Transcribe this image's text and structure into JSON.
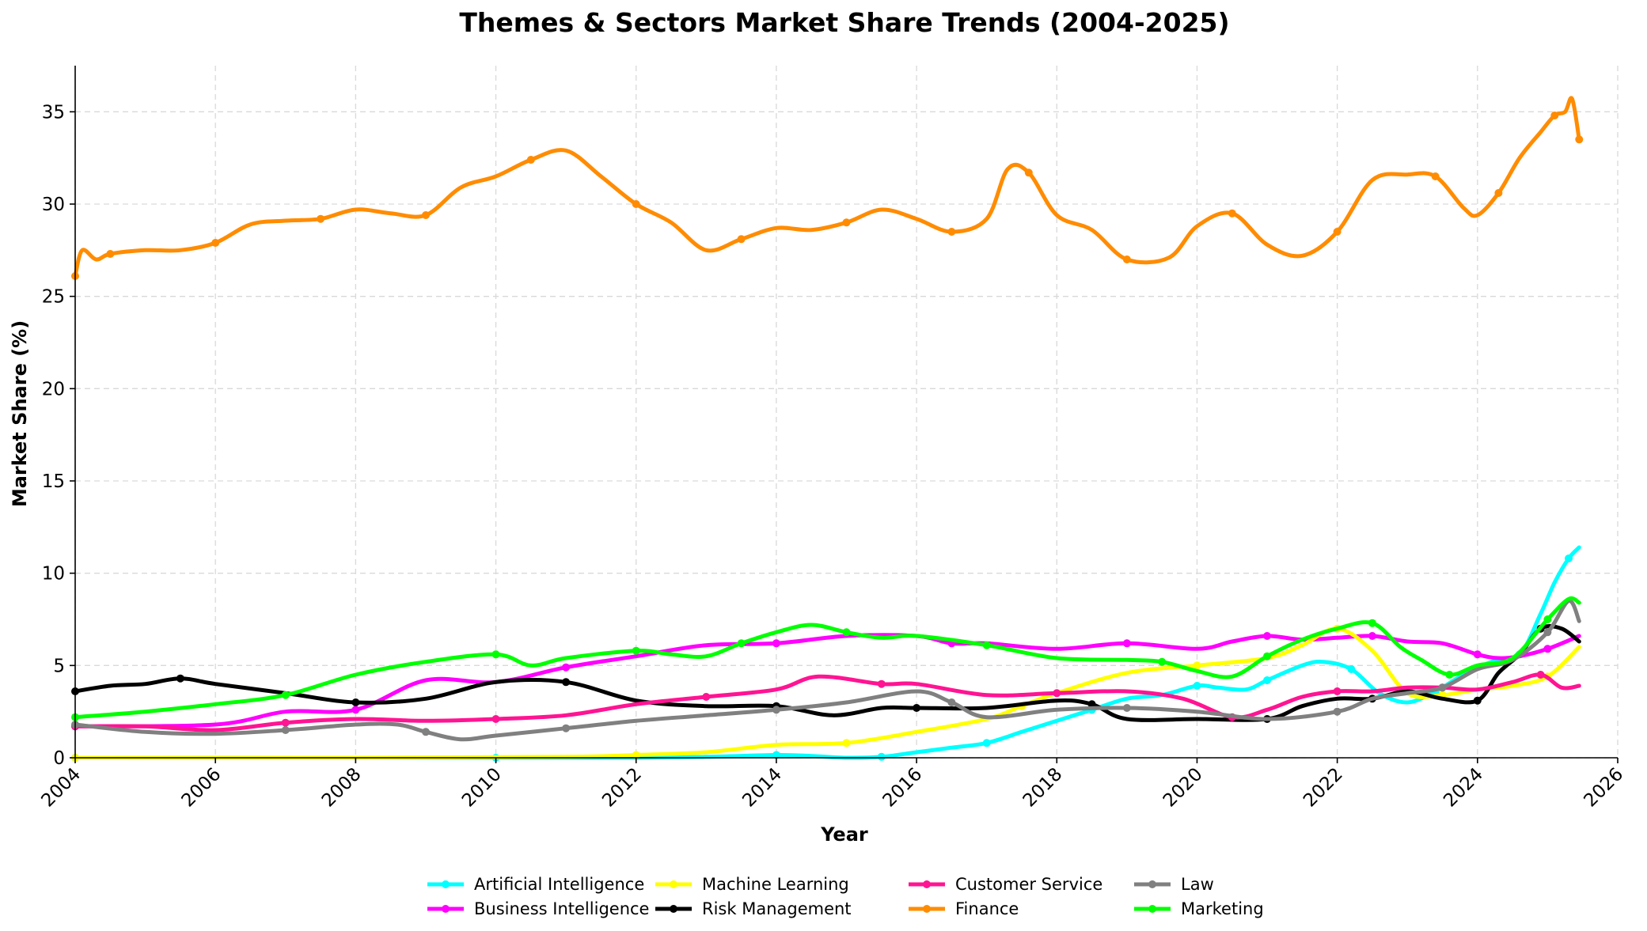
{
  "chart_data": {
    "type": "line",
    "title": "Themes & Sectors Market Share Trends (2004-2025)",
    "xlabel": "Year",
    "ylabel": "Market Share (%)",
    "xlim": [
      2004,
      2026
    ],
    "ylim": [
      0,
      37.5
    ],
    "xticks": [
      2004,
      2006,
      2008,
      2010,
      2012,
      2014,
      2016,
      2018,
      2020,
      2022,
      2024,
      2026
    ],
    "yticks": [
      0,
      5,
      10,
      15,
      20,
      25,
      30,
      35
    ],
    "grid": true,
    "legend_position": "bottom-center",
    "series": [
      {
        "name": "Artificial Intelligence",
        "color": "#00FFFF",
        "x": [
          2004.0,
          2006.0,
          2008.0,
          2010.0,
          2012.0,
          2013.0,
          2014.0,
          2014.5,
          2015.0,
          2015.5,
          2016.0,
          2016.5,
          2017.0,
          2017.5,
          2018.0,
          2018.5,
          2019.0,
          2019.5,
          2020.0,
          2020.3,
          2020.7,
          2021.0,
          2021.5,
          2021.8,
          2022.2,
          2022.6,
          2023.0,
          2023.4,
          2023.8,
          2024.2,
          2024.6,
          2024.9,
          2025.1,
          2025.3,
          2025.45
        ],
        "y": [
          0.0,
          0.0,
          0.0,
          0.0,
          0.0,
          0.05,
          0.15,
          0.1,
          0.0,
          0.05,
          0.3,
          0.55,
          0.8,
          1.4,
          2.0,
          2.6,
          3.2,
          3.4,
          3.9,
          3.8,
          3.7,
          4.2,
          5.0,
          5.2,
          4.8,
          3.5,
          3.0,
          3.6,
          4.5,
          5.2,
          5.6,
          7.8,
          9.5,
          10.8,
          11.4
        ]
      },
      {
        "name": "Business Intelligence",
        "color": "#FF00FF",
        "x": [
          2004.0,
          2006.0,
          2007.0,
          2008.0,
          2009.0,
          2010.0,
          2011.0,
          2012.0,
          2013.0,
          2014.0,
          2015.0,
          2016.0,
          2016.5,
          2017.0,
          2018.0,
          2019.0,
          2020.0,
          2020.5,
          2021.0,
          2021.5,
          2022.0,
          2022.5,
          2023.0,
          2023.5,
          2024.0,
          2024.3,
          2024.6,
          2025.0,
          2025.45
        ],
        "y": [
          1.7,
          1.8,
          2.5,
          2.6,
          4.2,
          4.1,
          4.9,
          5.5,
          6.1,
          6.2,
          6.6,
          6.6,
          6.2,
          6.2,
          5.9,
          6.2,
          5.9,
          6.3,
          6.6,
          6.4,
          6.5,
          6.6,
          6.3,
          6.2,
          5.6,
          5.4,
          5.5,
          5.9,
          6.6
        ]
      },
      {
        "name": "Machine Learning",
        "color": "#FFFF00",
        "x": [
          2004.0,
          2008.0,
          2011.0,
          2012.0,
          2013.0,
          2014.0,
          2015.0,
          2016.0,
          2017.0,
          2017.5,
          2018.0,
          2019.0,
          2020.0,
          2021.0,
          2021.5,
          2022.0,
          2022.5,
          2023.0,
          2023.5,
          2024.0,
          2024.5,
          2025.0,
          2025.45
        ],
        "y": [
          0.0,
          0.0,
          0.05,
          0.15,
          0.3,
          0.7,
          0.8,
          1.4,
          2.1,
          2.8,
          3.5,
          4.6,
          5.0,
          5.4,
          6.1,
          7.0,
          5.8,
          3.5,
          3.4,
          3.7,
          3.9,
          4.4,
          6.0
        ]
      },
      {
        "name": "Risk Management",
        "color": "#000000",
        "x": [
          2004.0,
          2004.5,
          2005.0,
          2005.5,
          2006.0,
          2007.0,
          2008.0,
          2009.0,
          2010.0,
          2011.0,
          2012.0,
          2013.0,
          2014.0,
          2014.8,
          2015.5,
          2016.0,
          2017.0,
          2018.0,
          2018.5,
          2019.0,
          2020.0,
          2021.0,
          2021.5,
          2022.0,
          2022.5,
          2023.0,
          2023.5,
          2024.0,
          2024.3,
          2024.6,
          2024.9,
          2025.2,
          2025.45
        ],
        "y": [
          3.6,
          3.9,
          4.0,
          4.3,
          4.0,
          3.5,
          3.0,
          3.2,
          4.1,
          4.1,
          3.1,
          2.8,
          2.8,
          2.3,
          2.7,
          2.7,
          2.7,
          3.1,
          2.9,
          2.1,
          2.1,
          2.1,
          2.8,
          3.2,
          3.2,
          3.6,
          3.2,
          3.1,
          4.6,
          5.6,
          7.0,
          7.0,
          6.3
        ]
      },
      {
        "name": "Customer Service",
        "color": "#FF1493",
        "x": [
          2004.0,
          2005.0,
          2006.0,
          2007.0,
          2008.0,
          2009.0,
          2010.0,
          2011.0,
          2012.0,
          2013.0,
          2014.0,
          2014.6,
          2015.5,
          2016.0,
          2017.0,
          2018.0,
          2019.0,
          2019.8,
          2020.5,
          2021.0,
          2021.5,
          2022.0,
          2022.5,
          2023.0,
          2023.5,
          2024.0,
          2024.5,
          2024.9,
          2025.2,
          2025.45
        ],
        "y": [
          1.7,
          1.7,
          1.5,
          1.9,
          2.1,
          2.0,
          2.1,
          2.3,
          2.9,
          3.3,
          3.7,
          4.4,
          4.0,
          4.0,
          3.4,
          3.5,
          3.6,
          3.2,
          2.2,
          2.6,
          3.3,
          3.6,
          3.6,
          3.8,
          3.8,
          3.7,
          4.1,
          4.5,
          3.8,
          3.9
        ]
      },
      {
        "name": "Finance",
        "color": "#FF8C00",
        "x": [
          2004.0,
          2004.1,
          2004.3,
          2004.5,
          2005.0,
          2005.5,
          2006.0,
          2006.5,
          2007.0,
          2007.5,
          2008.0,
          2008.5,
          2009.0,
          2009.5,
          2010.0,
          2010.5,
          2011.0,
          2011.5,
          2012.0,
          2012.5,
          2013.0,
          2013.5,
          2014.0,
          2014.5,
          2015.0,
          2015.5,
          2016.0,
          2016.5,
          2017.0,
          2017.3,
          2017.6,
          2018.0,
          2018.5,
          2019.0,
          2019.6,
          2020.0,
          2020.5,
          2021.0,
          2021.5,
          2022.0,
          2022.5,
          2023.0,
          2023.4,
          2023.8,
          2024.0,
          2024.3,
          2024.6,
          2024.9,
          2025.1,
          2025.25,
          2025.35,
          2025.45
        ],
        "y": [
          26.1,
          27.5,
          27.0,
          27.3,
          27.5,
          27.5,
          27.9,
          28.9,
          29.1,
          29.2,
          29.7,
          29.5,
          29.4,
          30.9,
          31.5,
          32.4,
          32.9,
          31.5,
          30.0,
          29.0,
          27.5,
          28.1,
          28.7,
          28.6,
          29.0,
          29.7,
          29.2,
          28.5,
          29.2,
          31.9,
          31.7,
          29.4,
          28.6,
          27.0,
          27.1,
          28.8,
          29.5,
          27.8,
          27.2,
          28.5,
          31.3,
          31.6,
          31.5,
          29.8,
          29.4,
          30.6,
          32.5,
          33.9,
          34.8,
          35.0,
          35.7,
          33.5
        ]
      },
      {
        "name": "Law",
        "color": "#808080",
        "x": [
          2004.0,
          2005.0,
          2006.0,
          2007.0,
          2008.0,
          2008.6,
          2009.0,
          2009.5,
          2010.0,
          2011.0,
          2012.0,
          2013.0,
          2014.0,
          2015.0,
          2016.0,
          2016.5,
          2017.0,
          2018.0,
          2019.0,
          2020.0,
          2021.0,
          2022.0,
          2022.5,
          2023.0,
          2023.5,
          2024.0,
          2024.5,
          2025.0,
          2025.3,
          2025.45
        ],
        "y": [
          1.8,
          1.4,
          1.3,
          1.5,
          1.8,
          1.8,
          1.4,
          1.0,
          1.2,
          1.6,
          2.0,
          2.3,
          2.6,
          3.0,
          3.6,
          3.0,
          2.2,
          2.6,
          2.7,
          2.5,
          2.1,
          2.5,
          3.2,
          3.5,
          3.8,
          4.8,
          5.3,
          6.8,
          8.5,
          7.4
        ]
      },
      {
        "name": "Marketing",
        "color": "#00FF00",
        "x": [
          2004.0,
          2005.0,
          2006.0,
          2007.0,
          2008.0,
          2009.0,
          2010.0,
          2010.5,
          2011.0,
          2012.0,
          2012.5,
          2013.0,
          2013.5,
          2014.0,
          2014.5,
          2015.0,
          2015.5,
          2016.0,
          2017.0,
          2018.0,
          2019.0,
          2019.5,
          2020.0,
          2020.5,
          2021.0,
          2021.5,
          2022.0,
          2022.5,
          2022.9,
          2023.2,
          2023.6,
          2024.0,
          2024.5,
          2025.0,
          2025.3,
          2025.45
        ],
        "y": [
          2.2,
          2.5,
          2.9,
          3.4,
          4.5,
          5.2,
          5.6,
          5.0,
          5.4,
          5.8,
          5.6,
          5.5,
          6.2,
          6.8,
          7.2,
          6.8,
          6.5,
          6.6,
          6.1,
          5.4,
          5.3,
          5.2,
          4.7,
          4.4,
          5.5,
          6.4,
          7.0,
          7.3,
          6.0,
          5.3,
          4.5,
          5.0,
          5.4,
          7.5,
          8.6,
          8.4
        ]
      }
    ]
  }
}
